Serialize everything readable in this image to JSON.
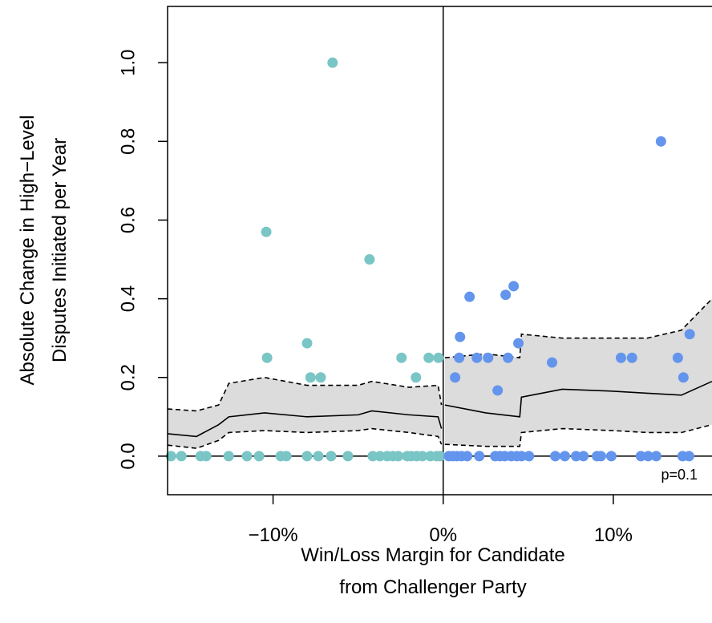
{
  "chart_data": {
    "type": "scatter",
    "x_label": [
      "Win/Loss Margin for Candidate",
      "from Challenger Party"
    ],
    "y_label": [
      "Absolute Change in High−Level",
      "Disputes Initiated per Year"
    ],
    "annotation": "p=0.1",
    "xlim": [
      -16.2,
      15.8
    ],
    "ylim": [
      -0.098,
      1.143
    ],
    "xticks": [
      {
        "value": -10,
        "label": "−10%"
      },
      {
        "value": 0,
        "label": "0%"
      },
      {
        "value": 10,
        "label": "10%"
      }
    ],
    "yticks": [
      {
        "value": 0,
        "label": "0.0"
      },
      0.2,
      0.4,
      0.6,
      0.8,
      {
        "value": 1,
        "label": "1.0"
      }
    ],
    "series": [
      {
        "color": "#7ac5c5",
        "x": [
          -6.5,
          -10.4,
          -4.33,
          -8.0,
          -10.35,
          -7.8,
          -7.2,
          -2.45,
          -1.6,
          -0.85,
          -0.28,
          -16.0,
          -15.39,
          -14.26,
          -13.93,
          -12.61,
          -11.53,
          -10.82,
          -9.55,
          -9.22,
          -8.0,
          -7.34,
          -6.59,
          -5.6,
          -4.14,
          -3.72,
          -3.29,
          -2.96,
          -2.64,
          -2.12,
          -1.88,
          -1.55,
          -1.22,
          -0.75,
          -0.38,
          -0.19
        ],
        "values": [
          1.0,
          0.57,
          0.5,
          0.287,
          0.25,
          0.2,
          0.2,
          0.25,
          0.2,
          0.25,
          0.25,
          0,
          0,
          0,
          0,
          0,
          0,
          0,
          0,
          0,
          0,
          0,
          0,
          0,
          0,
          0,
          0,
          0,
          0,
          0,
          0,
          0,
          0,
          0,
          0,
          0
        ]
      },
      {
        "color": "#6495ed",
        "x": [
          12.8,
          4.14,
          3.67,
          1.55,
          0.99,
          0.7,
          0.94,
          1.98,
          2.64,
          3.2,
          3.81,
          4.42,
          6.4,
          10.45,
          11.1,
          14.49,
          13.79,
          14.12,
          0.33,
          0.56,
          0.8,
          1.08,
          1.41,
          2.12,
          3.06,
          3.34,
          3.62,
          4.0,
          4.33,
          4.61,
          5.04,
          6.59,
          7.15,
          7.81,
          8.24,
          9.04,
          9.27,
          9.88,
          11.62,
          12.05,
          12.52,
          14.07,
          14.45
        ],
        "values": [
          0.8,
          0.432,
          0.41,
          0.405,
          0.303,
          0.2,
          0.25,
          0.25,
          0.25,
          0.167,
          0.25,
          0.287,
          0.238,
          0.25,
          0.25,
          0.31,
          0.25,
          0.2,
          0,
          0,
          0,
          0,
          0,
          0,
          0,
          0,
          0,
          0,
          0,
          0,
          0,
          0,
          0,
          0,
          0,
          0,
          0,
          0,
          0,
          0,
          0,
          0,
          0
        ]
      }
    ],
    "band": {
      "x": [
        -16.2,
        -14.5,
        -13.2,
        -12.6,
        -10.5,
        -8,
        -5,
        -4.2,
        -2,
        -0.3,
        -0.1,
        null,
        0.1,
        2.5,
        4.5,
        4.6,
        7,
        10,
        12,
        14,
        15.8
      ],
      "lower": [
        0.028,
        0.02,
        0.04,
        0.06,
        0.065,
        0.06,
        0.065,
        0.07,
        0.06,
        0.05,
        0.03,
        null,
        0.03,
        0.025,
        0.025,
        0.06,
        0.07,
        0.065,
        0.06,
        0.06,
        0.08
      ],
      "mid": [
        0.057,
        0.05,
        0.08,
        0.1,
        0.11,
        0.1,
        0.105,
        0.115,
        0.105,
        0.1,
        0.07,
        null,
        0.13,
        0.11,
        0.1,
        0.15,
        0.17,
        0.165,
        0.16,
        0.155,
        0.19
      ],
      "upper": [
        0.12,
        0.115,
        0.13,
        0.185,
        0.2,
        0.18,
        0.18,
        0.19,
        0.175,
        0.18,
        0.13,
        null,
        0.25,
        0.26,
        0.25,
        0.31,
        0.3,
        0.3,
        0.3,
        0.32,
        0.4
      ]
    }
  }
}
